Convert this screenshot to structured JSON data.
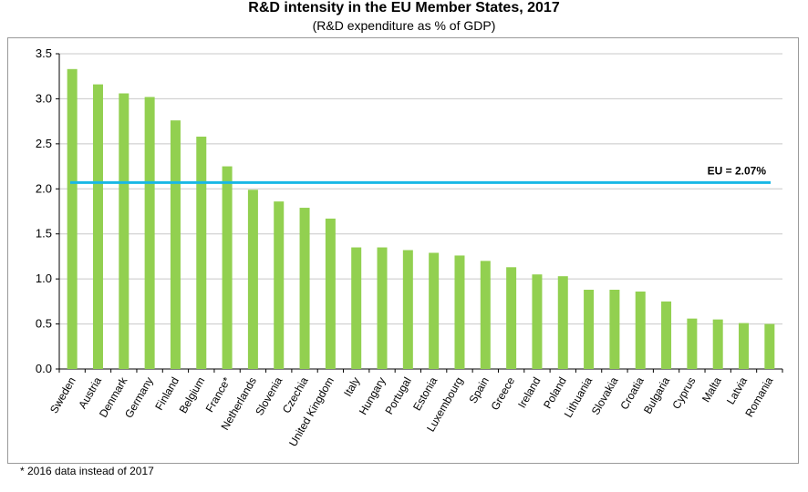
{
  "chart_data": {
    "type": "bar",
    "title": "R&D intensity in the EU Member States, 2017",
    "subtitle": "(R&D expenditure as % of GDP)",
    "xlabel": "",
    "ylabel": "",
    "ylim": [
      0,
      3.5
    ],
    "yticks": [
      "0.0",
      "0.5",
      "1.0",
      "1.5",
      "2.0",
      "2.5",
      "3.0",
      "3.5"
    ],
    "grid": true,
    "categories": [
      "Sweden",
      "Austria",
      "Denmark",
      "Germany",
      "Finland",
      "Belgium",
      "France*",
      "Netherlands",
      "Slovenia",
      "Czechia",
      "United Kingdom",
      "Italy",
      "Hungary",
      "Portugal",
      "Estonia",
      "Luxembourg",
      "Spain",
      "Greece",
      "Ireland",
      "Poland",
      "Lithuania",
      "Slovakia",
      "Croatia",
      "Bulgaria",
      "Cyprus",
      "Malta",
      "Latvia",
      "Romania"
    ],
    "values": [
      3.33,
      3.16,
      3.06,
      3.02,
      2.76,
      2.58,
      2.25,
      1.99,
      1.86,
      1.79,
      1.67,
      1.35,
      1.35,
      1.32,
      1.29,
      1.26,
      1.2,
      1.13,
      1.05,
      1.03,
      0.88,
      0.88,
      0.86,
      0.75,
      0.56,
      0.55,
      0.51,
      0.5
    ],
    "reference_line": {
      "label": "EU = 2.07%",
      "value": 2.07
    },
    "colors": {
      "bars": "#92d050",
      "reference": "#19b8e6",
      "grid": "#c8c8c8"
    }
  },
  "footnote": "* 2016 data instead of 2017"
}
